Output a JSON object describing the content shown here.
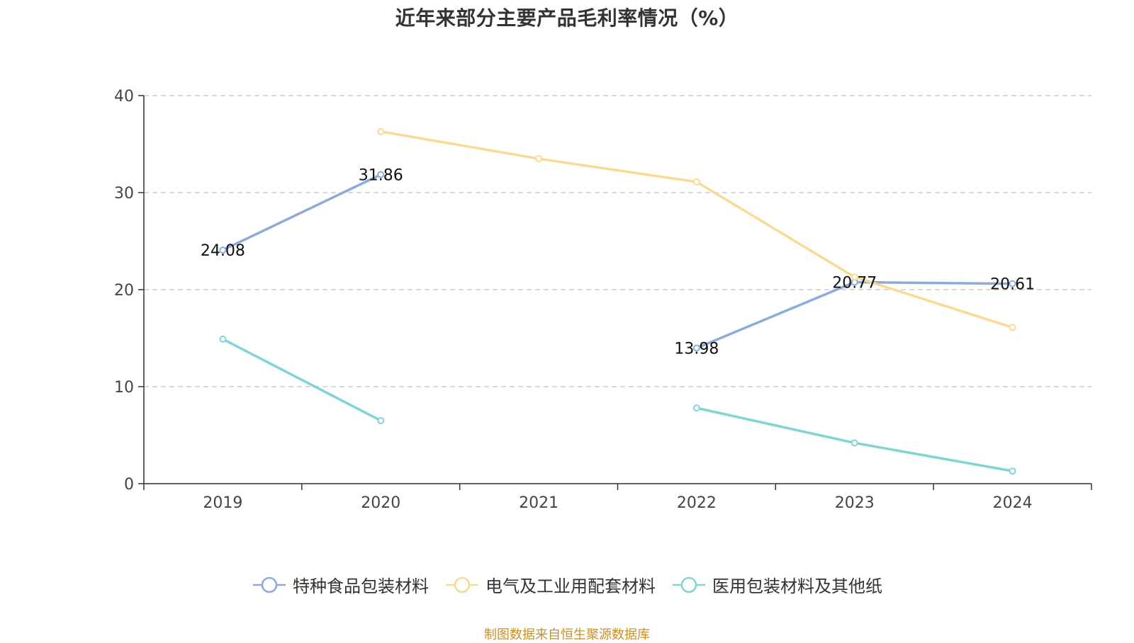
{
  "title": "近年来部分主要产品毛利率情况（%）",
  "source": "制图数据来自恒生聚源数据库",
  "colors": {
    "axis": "#333333",
    "grid": "#cccccc"
  },
  "chart_data": {
    "type": "line",
    "title": "近年来部分主要产品毛利率情况（%）",
    "categories": [
      "2019",
      "2020",
      "2021",
      "2022",
      "2023",
      "2024"
    ],
    "ylim": [
      0,
      40
    ],
    "yticks": [
      0,
      10,
      20,
      30,
      40
    ],
    "grid": true,
    "legend_position": "bottom",
    "series": [
      {
        "name": "特种食品包装材料",
        "color": "#8eaadb",
        "values": [
          24.08,
          31.86,
          null,
          13.98,
          20.77,
          20.61
        ],
        "labels": [
          "24.08",
          "31.86",
          null,
          "13.98",
          "20.77",
          "20.61"
        ]
      },
      {
        "name": "电气及工业用配套材料",
        "color": "#fad994",
        "values": [
          null,
          36.3,
          33.5,
          31.1,
          21.3,
          16.1
        ],
        "labels": [
          null,
          null,
          null,
          null,
          null,
          null
        ]
      },
      {
        "name": "医用包装材料及其他纸",
        "color": "#82d3d6",
        "values": [
          14.9,
          6.5,
          null,
          7.8,
          4.2,
          1.3
        ],
        "labels": [
          null,
          null,
          null,
          null,
          null,
          null
        ]
      }
    ]
  }
}
